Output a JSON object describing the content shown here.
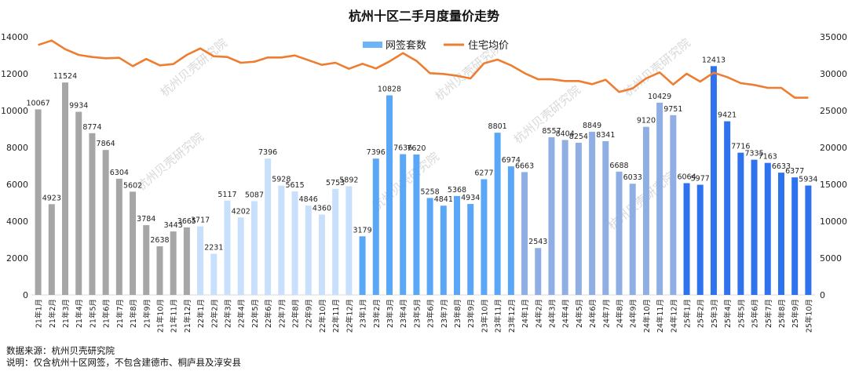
{
  "chart_data": {
    "type": "bar+line",
    "title": "杭州十区二手月度量价走势",
    "categories": [
      "21年1月",
      "21年2月",
      "21年3月",
      "21年4月",
      "21年5月",
      "21年6月",
      "21年7月",
      "21年8月",
      "21年9月",
      "21年10月",
      "21年11月",
      "21年12月",
      "22年1月",
      "22年2月",
      "22年3月",
      "22年4月",
      "22年5月",
      "22年6月",
      "22年7月",
      "22年8月",
      "22年9月",
      "22年10月",
      "22年11月",
      "22年12月",
      "23年1月",
      "23年2月",
      "23年3月",
      "23年4月",
      "23年5月",
      "23年6月",
      "23年7月",
      "23年8月",
      "23年9月",
      "23年10月",
      "23年11月",
      "23年12月",
      "24年1月",
      "24年2月",
      "24年3月",
      "24年4月",
      "24年5月",
      "24年6月",
      "24年7月",
      "24年8月",
      "24年9月",
      "24年10月",
      "24年11月",
      "24年12月",
      "25年1月",
      "25年2月",
      "25年3月",
      "25年4月",
      "25年5月",
      "25年6月",
      "25年7月",
      "25年8月",
      "25年9月",
      "25年10月"
    ],
    "series": [
      {
        "name": "网签套数",
        "type": "bar",
        "axis": "left",
        "color": "#6cb4f7",
        "values": [
          10067,
          4923,
          11524,
          9934,
          8774,
          7864,
          6304,
          5602,
          3784,
          2638,
          3443,
          3665,
          3717,
          2231,
          5117,
          4202,
          5087,
          7396,
          5928,
          5615,
          4846,
          4360,
          5753,
          5892,
          3179,
          7396,
          10828,
          7636,
          7620,
          5258,
          4841,
          5368,
          4934,
          6277,
          8801,
          6974,
          6663,
          2543,
          8557,
          8404,
          8254,
          8849,
          8341,
          6688,
          6033,
          9120,
          10429,
          9751,
          6064,
          5977,
          12413,
          9421,
          7716,
          7335,
          7163,
          6633,
          6377,
          5934
        ]
      },
      {
        "name": "住宅均价",
        "type": "line",
        "axis": "right",
        "color": "#ed7d31",
        "values": [
          33900,
          34500,
          33330,
          32550,
          32270,
          32100,
          32160,
          31030,
          32000,
          31140,
          31310,
          32550,
          33440,
          32370,
          32270,
          31490,
          31630,
          32200,
          32200,
          32480,
          31840,
          31200,
          31490,
          30670,
          31350,
          30710,
          31670,
          32800,
          31740,
          30070,
          29970,
          29720,
          29360,
          31420,
          31910,
          31140,
          30070,
          29250,
          29250,
          29010,
          29010,
          28580,
          29180,
          27520,
          28010,
          29360,
          30180,
          28540,
          30000,
          28940,
          30140,
          29540,
          28720,
          28480,
          28090,
          28090,
          26740,
          26740
        ]
      }
    ],
    "bar_year_colors": {
      "21": "#a6a6a6",
      "22": "#c8e0fb",
      "23": "#5aa7f8",
      "24": "#8fafe4",
      "25": "#2f72ee"
    },
    "left_axis": {
      "ylim": [
        0,
        14000
      ],
      "ticks": [
        "0",
        "2000",
        "4000",
        "6000",
        "8000",
        "10000",
        "12000",
        "14000"
      ]
    },
    "right_axis": {
      "ylim": [
        0,
        35000
      ],
      "ticks": [
        "0",
        "5000",
        "10000",
        "15000",
        "20000",
        "25000",
        "30000",
        "35000"
      ]
    },
    "grid": false,
    "legend_position": "top"
  },
  "watermark": "杭州贝壳研究院",
  "footer": {
    "source": "数据来源：杭州贝壳研究院",
    "note": "说明：仅含杭州十区网签，不包含建德市、桐庐县及淳安县"
  }
}
